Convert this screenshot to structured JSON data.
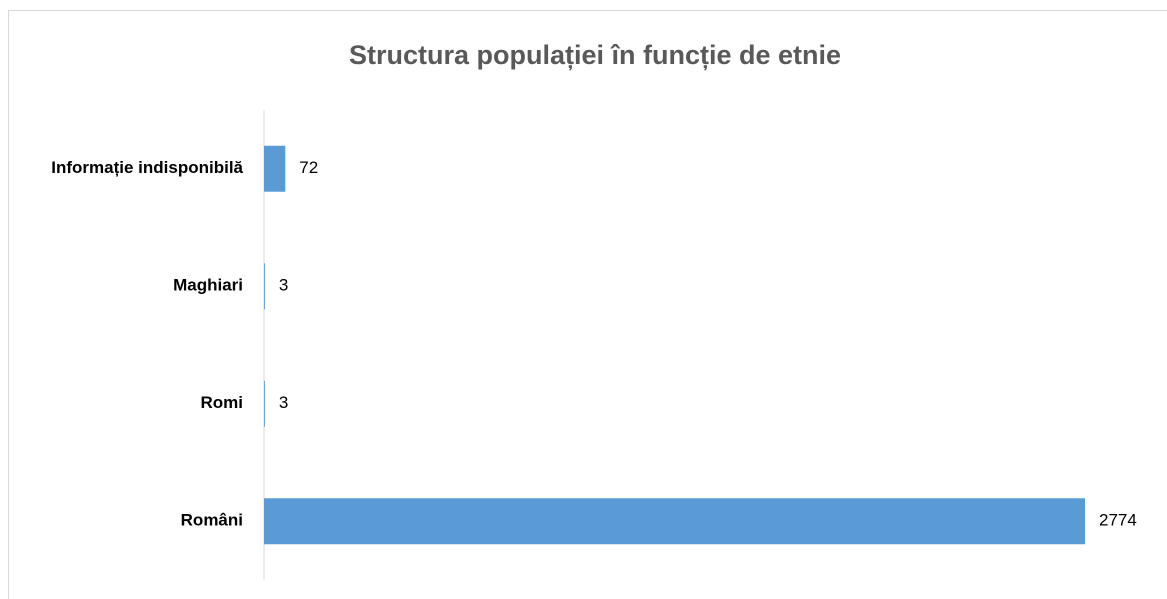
{
  "chart_data": {
    "type": "bar",
    "orientation": "horizontal",
    "title": "Structura populației în funcție de etnie",
    "categories": [
      "Informație indisponibilă",
      "Maghiari",
      "Romi",
      "Români"
    ],
    "values": [
      72,
      3,
      3,
      2774
    ],
    "color": "#5b9bd5"
  }
}
